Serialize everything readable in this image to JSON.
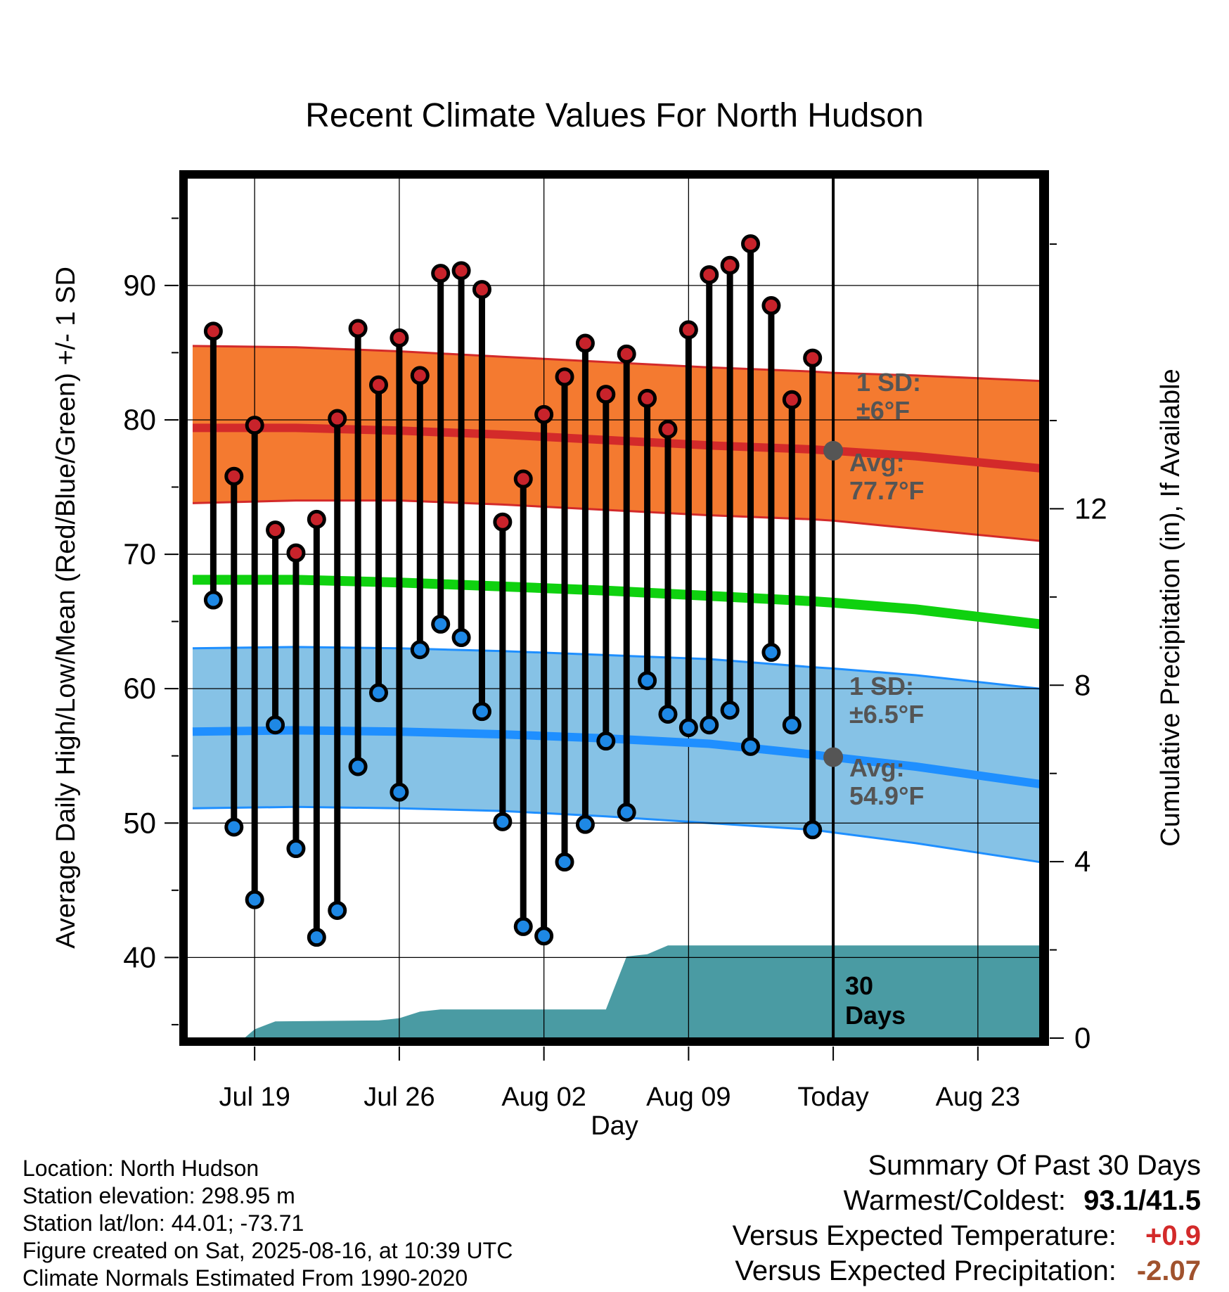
{
  "title": "Recent Climate Values For North Hudson",
  "colors": {
    "high_band": "#f47a30",
    "high_avg": "#d32a2a",
    "low_band": "#86c2e6",
    "low_avg": "#1f8fff",
    "mean": "#0fd10f",
    "precip": "#4a9ba3",
    "marker_high": "#c8232b",
    "marker_low": "#1e88e5",
    "annotation": "#555555",
    "positive_anomaly": "#d32a2a",
    "negative_anomaly": "#a0522d"
  },
  "chart_data": {
    "type": "line",
    "xlabel": "Day",
    "ylabel_left": "Average Daily High/Low/Mean (Red/Blue/Green) +/- 1 SD",
    "ylabel_right": "Cumulative Precipitation (in), If Available",
    "x_axis_days_from_today": [
      -31,
      10
    ],
    "x_ticks": [
      {
        "day": -28,
        "label": "Jul 19"
      },
      {
        "day": -21,
        "label": "Jul 26"
      },
      {
        "day": -14,
        "label": "Aug 02"
      },
      {
        "day": -7,
        "label": "Aug 09"
      },
      {
        "day": 0,
        "label": "Today"
      },
      {
        "day": 7,
        "label": "Aug 23"
      }
    ],
    "ylim_left": [
      34,
      98
    ],
    "y_ticks_left": [
      40,
      50,
      60,
      70,
      80,
      90
    ],
    "ylim_right": [
      0,
      19.5
    ],
    "y_ticks_right": [
      0,
      4,
      8,
      12
    ],
    "grid": true,
    "normals": {
      "days": [
        -31,
        -26,
        -21,
        -16,
        -11,
        -6,
        -1,
        0,
        4,
        10
      ],
      "high_avg": [
        79.4,
        79.4,
        79.2,
        78.9,
        78.5,
        78.1,
        77.8,
        77.7,
        77.3,
        76.4
      ],
      "high_upper": [
        85.5,
        85.4,
        85.1,
        84.7,
        84.3,
        83.9,
        83.6,
        83.5,
        83.3,
        82.9
      ],
      "high_lower": [
        73.8,
        74.0,
        74.0,
        73.7,
        73.3,
        72.9,
        72.6,
        72.5,
        71.9,
        71.0
      ],
      "mean": [
        68.1,
        68.1,
        67.9,
        67.6,
        67.3,
        66.9,
        66.5,
        66.4,
        65.9,
        64.8
      ],
      "low_avg": [
        56.8,
        56.9,
        56.8,
        56.6,
        56.3,
        55.9,
        55.1,
        54.9,
        54.2,
        52.9
      ],
      "low_upper": [
        63.0,
        63.1,
        63.0,
        62.8,
        62.5,
        62.2,
        61.6,
        61.5,
        61.0,
        60.0
      ],
      "low_lower": [
        51.1,
        51.2,
        51.1,
        50.9,
        50.5,
        50.0,
        49.5,
        49.3,
        48.5,
        47.1
      ]
    },
    "observed": {
      "days": [
        -30,
        -29,
        -28,
        -27,
        -26,
        -25,
        -24,
        -23,
        -22,
        -21,
        -20,
        -19,
        -18,
        -17,
        -16,
        -15,
        -14,
        -13,
        -12,
        -11,
        -10,
        -9,
        -8,
        -7,
        -6,
        -5,
        -4,
        -3,
        -2,
        -1
      ],
      "high": [
        86.6,
        75.8,
        79.6,
        71.8,
        70.1,
        72.6,
        80.1,
        86.8,
        82.6,
        86.1,
        83.3,
        90.9,
        91.1,
        89.7,
        72.4,
        75.6,
        80.4,
        83.2,
        85.7,
        81.9,
        84.9,
        81.6,
        79.3,
        86.7,
        90.8,
        91.5,
        93.1,
        88.5,
        81.5,
        84.6
      ],
      "low": [
        66.6,
        49.7,
        44.3,
        57.3,
        48.1,
        41.5,
        43.5,
        54.2,
        59.7,
        52.3,
        62.9,
        64.8,
        63.8,
        58.3,
        50.1,
        42.3,
        41.6,
        47.1,
        49.9,
        56.1,
        50.8,
        60.6,
        58.1,
        57.1,
        57.3,
        58.4,
        55.7,
        62.7,
        57.3,
        49.5
      ]
    },
    "precipitation": {
      "days": [
        -31,
        -28.5,
        -28,
        -27,
        -22,
        -21,
        -20,
        -19,
        -15,
        -11,
        -10,
        -9,
        -8,
        -7,
        0,
        10
      ],
      "cumulative": [
        0,
        0,
        0.2,
        0.38,
        0.4,
        0.45,
        0.6,
        0.65,
        0.65,
        0.65,
        1.85,
        1.9,
        2.1,
        2.1,
        2.1,
        2.1
      ]
    },
    "annotations": {
      "high_sd": [
        "1 SD:",
        "±6°F"
      ],
      "high_avg": [
        "Avg:",
        "77.7°F"
      ],
      "low_sd": [
        "1 SD:",
        "±6.5°F"
      ],
      "low_avg": [
        "Avg:",
        "54.9°F"
      ],
      "precip_label": [
        "30",
        "Days"
      ],
      "today_high_avg": 77.7,
      "today_low_avg": 54.9
    }
  },
  "footer_left": [
    "Location: North Hudson",
    "Station elevation: 298.95 m",
    "Station lat/lon: 44.01; -73.71",
    "Figure created on Sat, 2025-08-16, at 10:39 UTC",
    "Climate Normals Estimated From 1990-2020"
  ],
  "summary": {
    "heading": "Summary Of Past 30 Days",
    "warmest_coldest_label": "Warmest/Coldest:",
    "warmest_coldest_value": "93.1/41.5",
    "temp_label": "Versus Expected Temperature:",
    "temp_value": "+0.9",
    "precip_label": "Versus Expected Precipitation:",
    "precip_value": "-2.07"
  }
}
